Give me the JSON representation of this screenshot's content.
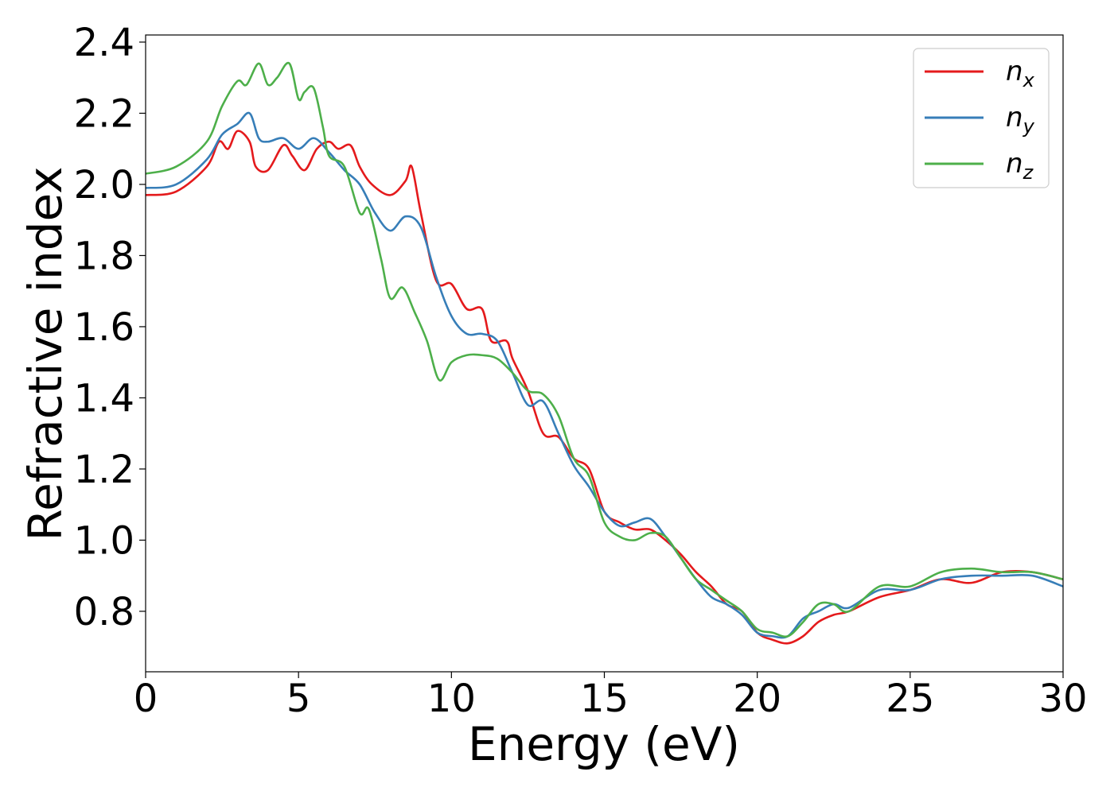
{
  "chart_data": {
    "type": "line",
    "xlabel": "Energy (eV)",
    "ylabel": "Refractive index",
    "xlim": [
      0,
      30
    ],
    "ylim": [
      0.63,
      2.42
    ],
    "xticks": [
      "0",
      "5",
      "10",
      "15",
      "20",
      "25",
      "30"
    ],
    "yticks": [
      "0.8",
      "1.0",
      "1.2",
      "1.4",
      "1.6",
      "1.8",
      "2.0",
      "2.2",
      "2.4"
    ],
    "grid": false,
    "legend_position": "top-right",
    "series": [
      {
        "name": "n",
        "subscript": "x",
        "color": "#e41a1c",
        "x": [
          0,
          1,
          2,
          2.4,
          2.7,
          3.0,
          3.4,
          3.6,
          4.0,
          4.5,
          4.8,
          5.2,
          5.6,
          6.0,
          6.3,
          6.7,
          7.0,
          7.4,
          8.0,
          8.5,
          8.7,
          9.0,
          9.5,
          10.0,
          10.5,
          11.0,
          11.3,
          11.8,
          12.0,
          12.5,
          13.0,
          13.5,
          14.0,
          14.5,
          15.0,
          15.5,
          16.0,
          16.5,
          17.0,
          17.5,
          18.0,
          18.5,
          19.0,
          19.5,
          20.0,
          20.5,
          21.0,
          21.5,
          22.0,
          22.5,
          23.0,
          24.0,
          25.0,
          26.0,
          27.0,
          28.0,
          29.0,
          30.0
        ],
        "values": [
          1.97,
          1.98,
          2.05,
          2.12,
          2.1,
          2.15,
          2.12,
          2.05,
          2.04,
          2.11,
          2.08,
          2.04,
          2.1,
          2.12,
          2.1,
          2.11,
          2.05,
          2.0,
          1.97,
          2.01,
          2.05,
          1.92,
          1.73,
          1.72,
          1.65,
          1.65,
          1.56,
          1.56,
          1.51,
          1.42,
          1.3,
          1.29,
          1.23,
          1.2,
          1.08,
          1.05,
          1.03,
          1.03,
          1.0,
          0.96,
          0.91,
          0.87,
          0.82,
          0.8,
          0.74,
          0.72,
          0.71,
          0.73,
          0.77,
          0.79,
          0.8,
          0.84,
          0.86,
          0.89,
          0.88,
          0.91,
          0.91,
          0.89
        ]
      },
      {
        "name": "n",
        "subscript": "y",
        "color": "#377eb8",
        "x": [
          0,
          1,
          2,
          2.5,
          3.0,
          3.4,
          3.7,
          4.0,
          4.5,
          5.0,
          5.5,
          6.0,
          6.5,
          7.0,
          7.5,
          8.0,
          8.5,
          9.0,
          9.5,
          10.0,
          10.5,
          11.0,
          11.5,
          12.0,
          12.5,
          13.0,
          13.5,
          14.0,
          14.5,
          15.0,
          15.5,
          16.0,
          16.5,
          17.0,
          17.5,
          18.0,
          18.5,
          19.0,
          19.5,
          20.0,
          20.5,
          21.0,
          21.5,
          22.0,
          22.5,
          23.0,
          24.0,
          25.0,
          26.0,
          27.0,
          28.0,
          29.0,
          30.0
        ],
        "values": [
          1.99,
          2.0,
          2.07,
          2.14,
          2.17,
          2.2,
          2.13,
          2.12,
          2.13,
          2.1,
          2.13,
          2.09,
          2.04,
          2.0,
          1.92,
          1.87,
          1.91,
          1.88,
          1.74,
          1.63,
          1.58,
          1.58,
          1.56,
          1.47,
          1.38,
          1.39,
          1.3,
          1.21,
          1.15,
          1.08,
          1.04,
          1.05,
          1.06,
          1.01,
          0.95,
          0.89,
          0.84,
          0.82,
          0.79,
          0.74,
          0.73,
          0.73,
          0.78,
          0.8,
          0.82,
          0.81,
          0.86,
          0.86,
          0.89,
          0.9,
          0.9,
          0.9,
          0.87
        ]
      },
      {
        "name": "n",
        "subscript": "z",
        "color": "#4daf4a",
        "x": [
          0,
          1,
          2,
          2.5,
          3.0,
          3.3,
          3.7,
          4.0,
          4.3,
          4.7,
          5.0,
          5.2,
          5.5,
          5.8,
          6.0,
          6.5,
          7.0,
          7.3,
          7.7,
          8.0,
          8.4,
          8.8,
          9.2,
          9.6,
          10.0,
          10.5,
          11.0,
          11.5,
          12.0,
          12.5,
          13.0,
          13.5,
          14.0,
          14.5,
          15.0,
          15.5,
          16.0,
          16.5,
          17.0,
          17.5,
          18.0,
          18.5,
          19.0,
          19.5,
          20.0,
          20.5,
          21.0,
          21.5,
          22.0,
          22.5,
          23.0,
          24.0,
          25.0,
          26.0,
          27.0,
          28.0,
          29.0,
          30.0
        ],
        "values": [
          2.03,
          2.05,
          2.12,
          2.22,
          2.29,
          2.28,
          2.34,
          2.28,
          2.3,
          2.34,
          2.24,
          2.26,
          2.27,
          2.16,
          2.08,
          2.05,
          1.92,
          1.93,
          1.79,
          1.68,
          1.71,
          1.64,
          1.56,
          1.45,
          1.5,
          1.52,
          1.52,
          1.51,
          1.47,
          1.42,
          1.41,
          1.35,
          1.23,
          1.18,
          1.05,
          1.01,
          1.0,
          1.02,
          1.01,
          0.95,
          0.89,
          0.86,
          0.83,
          0.8,
          0.75,
          0.74,
          0.73,
          0.77,
          0.82,
          0.82,
          0.8,
          0.87,
          0.87,
          0.91,
          0.92,
          0.91,
          0.91,
          0.89
        ]
      }
    ]
  }
}
